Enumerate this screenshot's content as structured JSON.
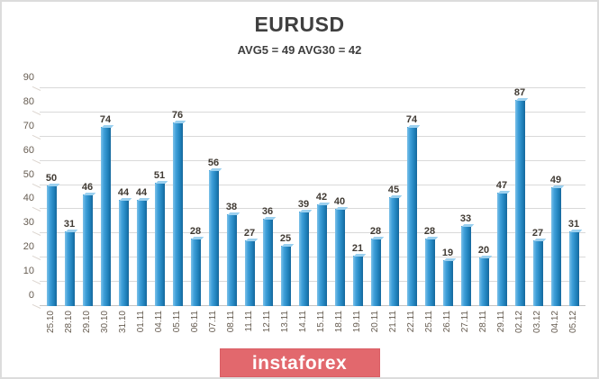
{
  "header": {
    "title": "EURUSD",
    "subtitle": "AVG5 = 49 AVG30 = 42"
  },
  "chart_data": {
    "type": "bar",
    "title": "EURUSD",
    "subtitle": "AVG5 = 49 AVG30 = 42",
    "categories": [
      "25.10",
      "28.10",
      "29.10",
      "30.10",
      "31.10",
      "01.11",
      "04.11",
      "05.11",
      "06.11",
      "07.11",
      "08.11",
      "11.11",
      "12.11",
      "13.11",
      "14.11",
      "15.11",
      "18.11",
      "19.11",
      "20.11",
      "21.11",
      "22.11",
      "25.11",
      "26.11",
      "27.11",
      "28.11",
      "29.11",
      "02.12",
      "03.12",
      "04.12",
      "05.12"
    ],
    "values": [
      50,
      31,
      46,
      74,
      44,
      44,
      51,
      76,
      28,
      56,
      38,
      27,
      36,
      25,
      39,
      42,
      40,
      21,
      28,
      45,
      74,
      28,
      19,
      33,
      20,
      47,
      87,
      27,
      49,
      31
    ],
    "xlabel": "",
    "ylabel": "",
    "ylim": [
      0,
      90
    ],
    "ytick_interval": 10,
    "yticks": [
      0,
      10,
      20,
      30,
      40,
      50,
      60,
      70,
      80,
      90
    ],
    "grid": true,
    "legend": false,
    "data_labels": true,
    "bar_color_light": "#7ec2e9",
    "bar_color_dark": "#15679c",
    "value_label_color": "#403a33",
    "axis_label_color": "#665c51",
    "gridline_color": "#d9d9d9",
    "title_color": "#3f3f3f"
  },
  "footer": {
    "brand": "instaforex",
    "banner_color": "#e2686d",
    "banner_text_color": "#ffffff"
  }
}
